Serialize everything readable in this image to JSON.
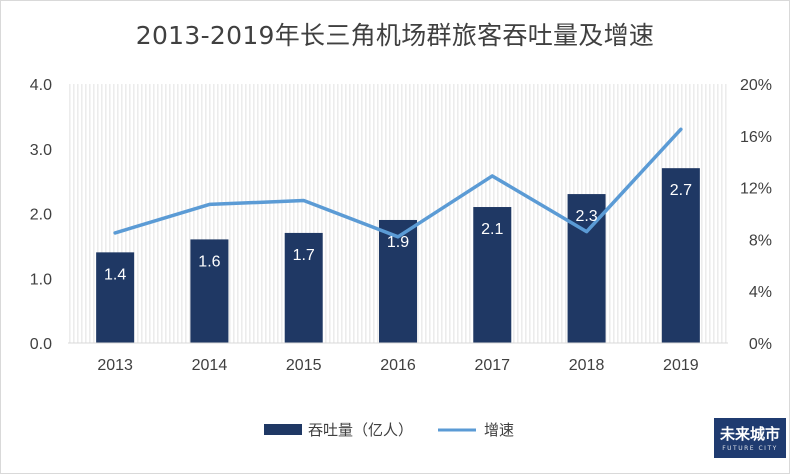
{
  "title": "2013-2019年长三角机场群旅客吞吐量及增速",
  "legend": {
    "bar_label": "吞吐量（亿人）",
    "line_label": "增速"
  },
  "logo": {
    "main": "未来城市",
    "sub": "FUTURE CITY"
  },
  "colors": {
    "bar": "#1f3864",
    "line": "#5b9bd5",
    "stripe": "#ececec"
  },
  "chart_data": {
    "type": "bar",
    "title": "2013-2019年长三角机场群旅客吞吐量及增速",
    "categories": [
      "2013",
      "2014",
      "2015",
      "2016",
      "2017",
      "2018",
      "2019"
    ],
    "series": [
      {
        "name": "吞吐量（亿人）",
        "type": "bar",
        "axis": "left",
        "values": [
          1.4,
          1.6,
          1.7,
          1.9,
          2.1,
          2.3,
          2.7
        ],
        "labels": [
          "1.4",
          "1.6",
          "1.7",
          "1.9",
          "2.1",
          "2.3",
          "2.7"
        ]
      },
      {
        "name": "增速",
        "type": "line",
        "axis": "right",
        "values": [
          8.5,
          10.7,
          11.0,
          8.2,
          12.9,
          8.6,
          16.5
        ]
      }
    ],
    "y_left": {
      "min": 0,
      "max": 4,
      "ticks": [
        "0.0",
        "1.0",
        "2.0",
        "3.0",
        "4.0"
      ]
    },
    "y_right": {
      "min": 0,
      "max": 20,
      "ticks": [
        "0%",
        "4%",
        "8%",
        "12%",
        "16%",
        "20%"
      ]
    },
    "grid": false,
    "legend_position": "bottom"
  }
}
